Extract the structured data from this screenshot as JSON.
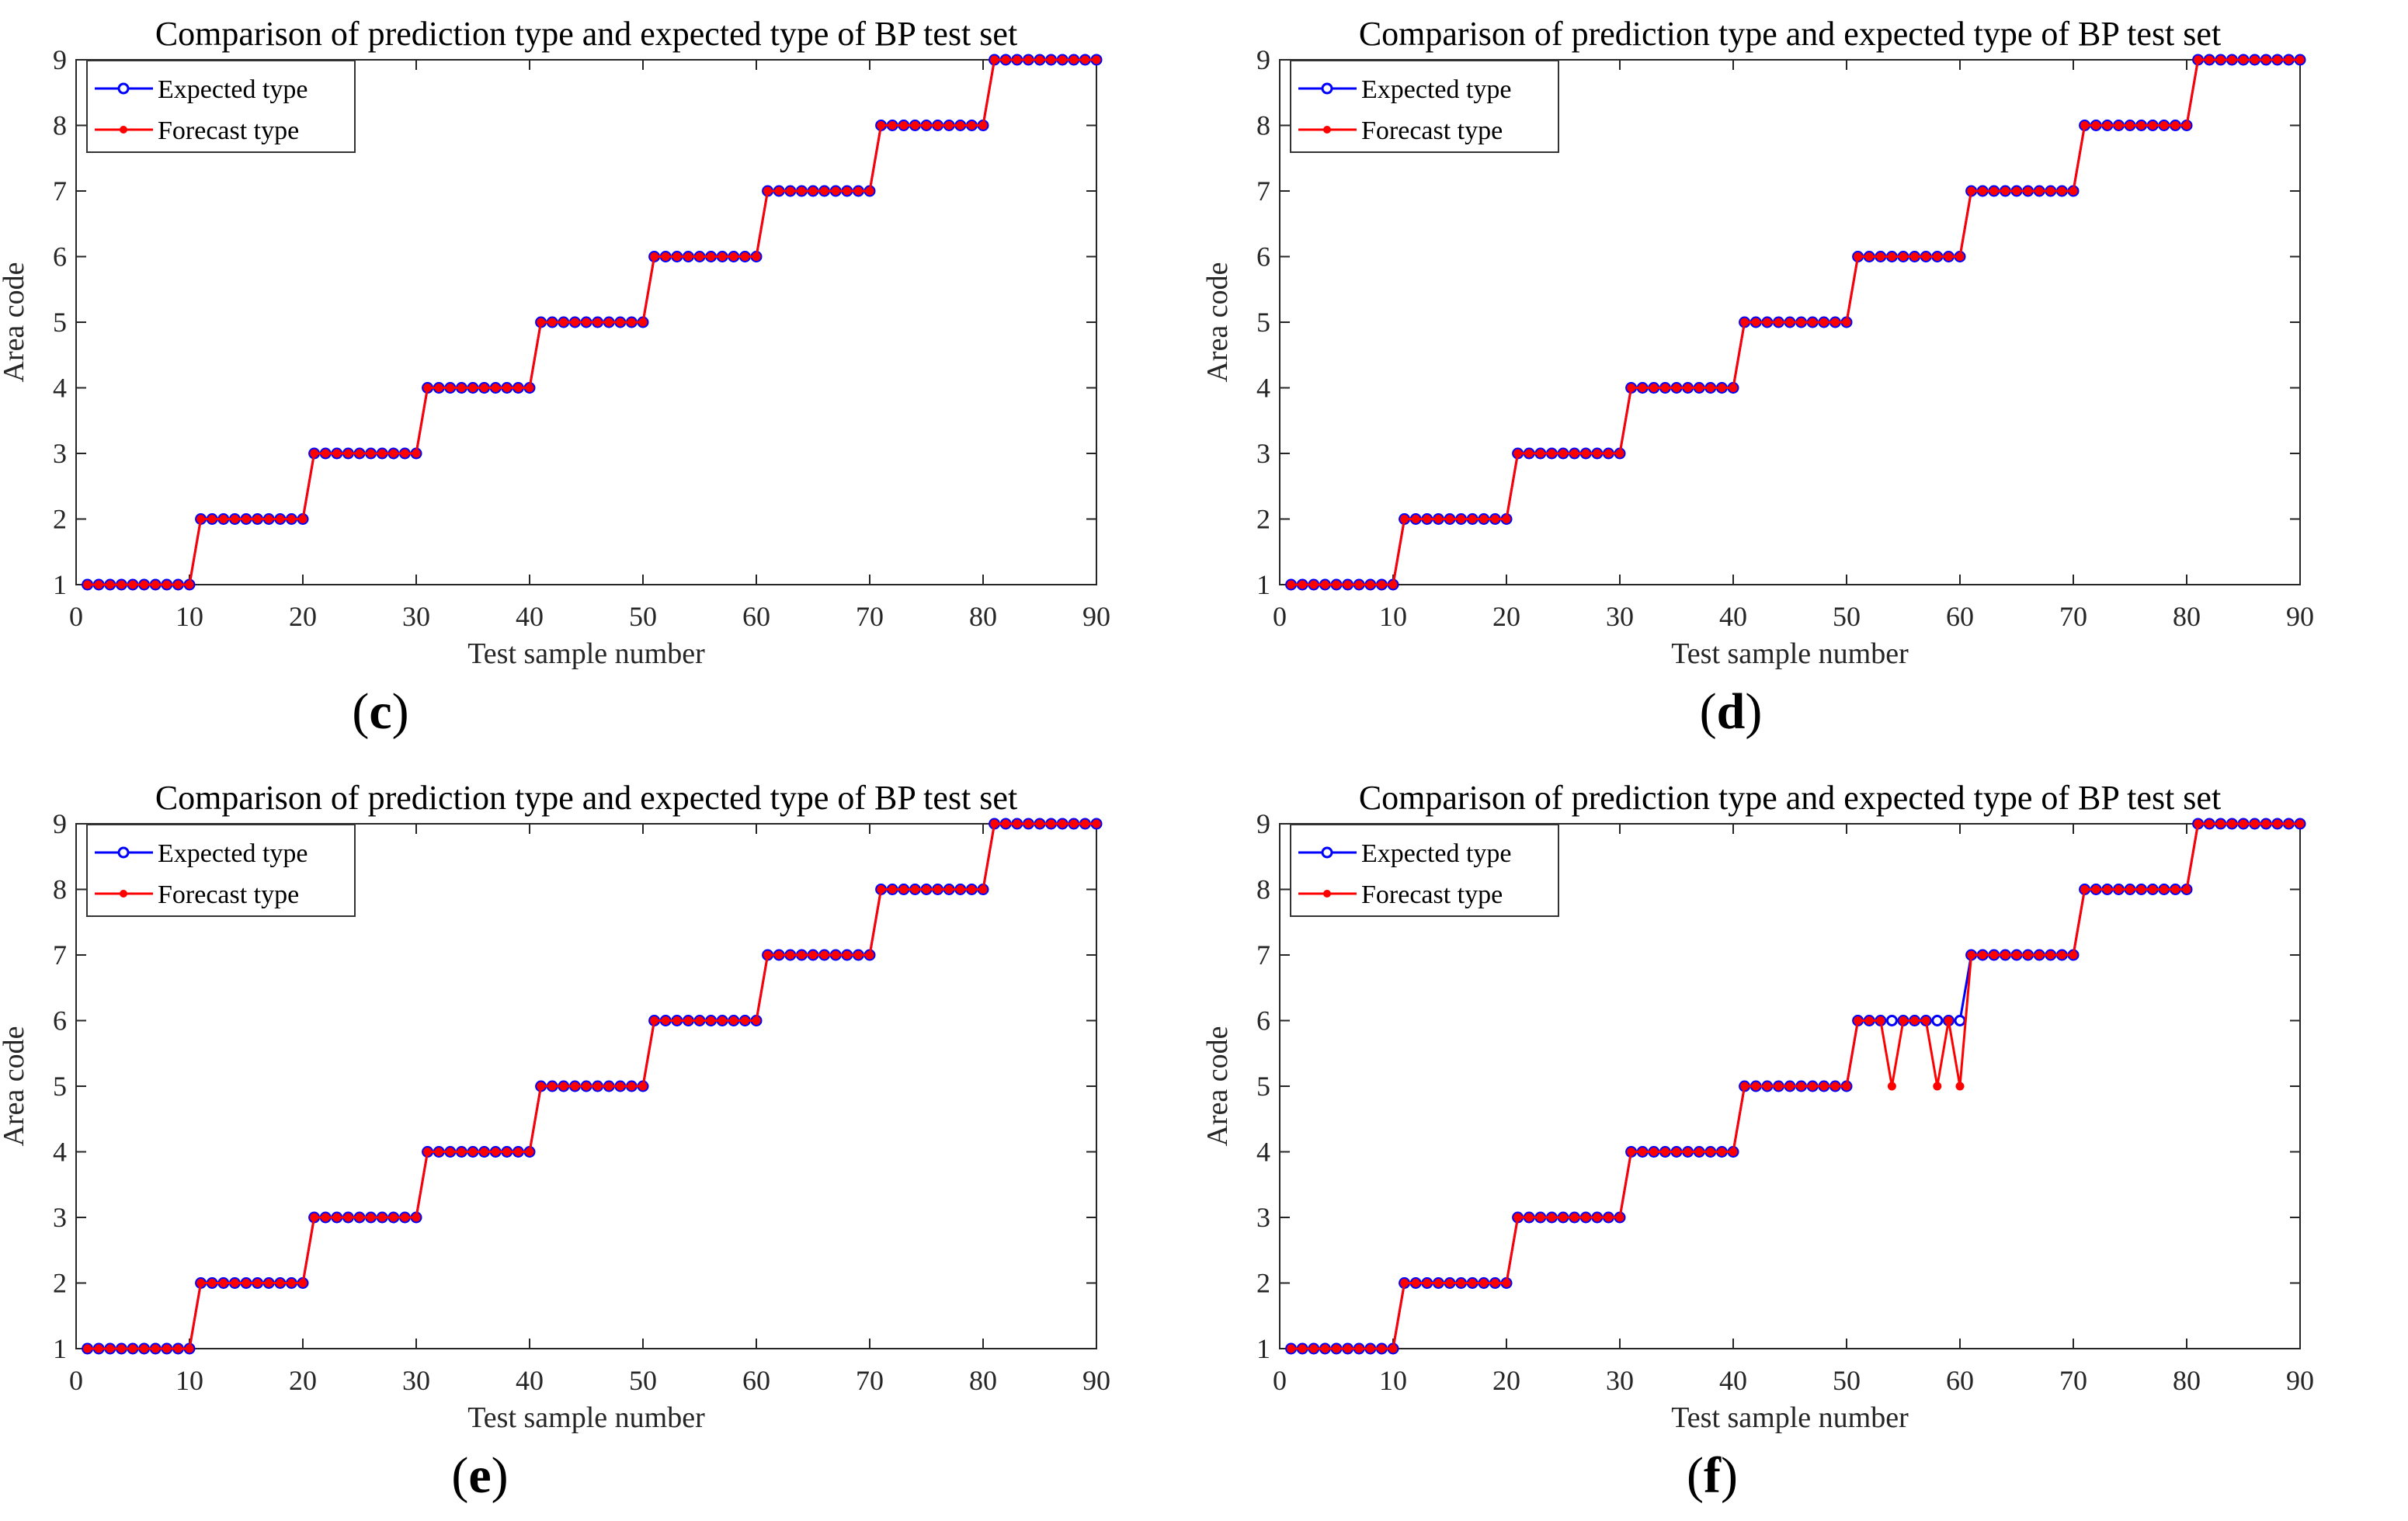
{
  "figure": {
    "panels": [
      {
        "id": "c",
        "label_open": "(",
        "letter": "c",
        "label_close": ")"
      },
      {
        "id": "d",
        "label_open": "(",
        "letter": "d",
        "label_close": ")"
      },
      {
        "id": "e",
        "label_open": "(",
        "letter": "e",
        "label_close": ")"
      },
      {
        "id": "f",
        "label_open": "(",
        "letter": "f",
        "label_close": ")"
      }
    ]
  },
  "chart_data": [
    {
      "id": "c",
      "type": "line",
      "title": "Comparison of prediction type and expected type of BP test set",
      "xlabel": "Test sample number",
      "ylabel": "Area code",
      "xlim": [
        0,
        90
      ],
      "ylim": [
        1,
        9
      ],
      "xticks": [
        0,
        10,
        20,
        30,
        40,
        50,
        60,
        70,
        80,
        90
      ],
      "yticks": [
        1,
        2,
        3,
        4,
        5,
        6,
        7,
        8,
        9
      ],
      "grid": false,
      "legend_position": "top-left",
      "x": [
        1,
        2,
        3,
        4,
        5,
        6,
        7,
        8,
        9,
        10,
        11,
        12,
        13,
        14,
        15,
        16,
        17,
        18,
        19,
        20,
        21,
        22,
        23,
        24,
        25,
        26,
        27,
        28,
        29,
        30,
        31,
        32,
        33,
        34,
        35,
        36,
        37,
        38,
        39,
        40,
        41,
        42,
        43,
        44,
        45,
        46,
        47,
        48,
        49,
        50,
        51,
        52,
        53,
        54,
        55,
        56,
        57,
        58,
        59,
        60,
        61,
        62,
        63,
        64,
        65,
        66,
        67,
        68,
        69,
        70,
        71,
        72,
        73,
        74,
        75,
        76,
        77,
        78,
        79,
        80,
        81,
        82,
        83,
        84,
        85,
        86,
        87,
        88,
        89,
        90
      ],
      "series": [
        {
          "name": "Expected type",
          "color": "#0000FF",
          "marker": "open-circle",
          "values": [
            1,
            1,
            1,
            1,
            1,
            1,
            1,
            1,
            1,
            1,
            2,
            2,
            2,
            2,
            2,
            2,
            2,
            2,
            2,
            2,
            3,
            3,
            3,
            3,
            3,
            3,
            3,
            3,
            3,
            3,
            4,
            4,
            4,
            4,
            4,
            4,
            4,
            4,
            4,
            4,
            5,
            5,
            5,
            5,
            5,
            5,
            5,
            5,
            5,
            5,
            6,
            6,
            6,
            6,
            6,
            6,
            6,
            6,
            6,
            6,
            7,
            7,
            7,
            7,
            7,
            7,
            7,
            7,
            7,
            7,
            8,
            8,
            8,
            8,
            8,
            8,
            8,
            8,
            8,
            8,
            9,
            9,
            9,
            9,
            9,
            9,
            9,
            9,
            9,
            9
          ]
        },
        {
          "name": "Forecast type",
          "color": "#FF0000",
          "marker": "filled-circle",
          "values": [
            1,
            1,
            1,
            1,
            1,
            1,
            1,
            1,
            1,
            1,
            2,
            2,
            2,
            2,
            2,
            2,
            2,
            2,
            2,
            2,
            3,
            3,
            3,
            3,
            3,
            3,
            3,
            3,
            3,
            3,
            4,
            4,
            4,
            4,
            4,
            4,
            4,
            4,
            4,
            4,
            5,
            5,
            5,
            5,
            5,
            5,
            5,
            5,
            5,
            5,
            6,
            6,
            6,
            6,
            6,
            6,
            6,
            6,
            6,
            6,
            7,
            7,
            7,
            7,
            7,
            7,
            7,
            7,
            7,
            7,
            8,
            8,
            8,
            8,
            8,
            8,
            8,
            8,
            8,
            8,
            9,
            9,
            9,
            9,
            9,
            9,
            9,
            9,
            9,
            9
          ]
        }
      ]
    },
    {
      "id": "d",
      "type": "line",
      "title": "Comparison of prediction type and expected type of BP test set",
      "xlabel": "Test sample number",
      "ylabel": "Area code",
      "xlim": [
        0,
        90
      ],
      "ylim": [
        1,
        9
      ],
      "xticks": [
        0,
        10,
        20,
        30,
        40,
        50,
        60,
        70,
        80,
        90
      ],
      "yticks": [
        1,
        2,
        3,
        4,
        5,
        6,
        7,
        8,
        9
      ],
      "grid": false,
      "legend_position": "top-left",
      "x": [
        1,
        2,
        3,
        4,
        5,
        6,
        7,
        8,
        9,
        10,
        11,
        12,
        13,
        14,
        15,
        16,
        17,
        18,
        19,
        20,
        21,
        22,
        23,
        24,
        25,
        26,
        27,
        28,
        29,
        30,
        31,
        32,
        33,
        34,
        35,
        36,
        37,
        38,
        39,
        40,
        41,
        42,
        43,
        44,
        45,
        46,
        47,
        48,
        49,
        50,
        51,
        52,
        53,
        54,
        55,
        56,
        57,
        58,
        59,
        60,
        61,
        62,
        63,
        64,
        65,
        66,
        67,
        68,
        69,
        70,
        71,
        72,
        73,
        74,
        75,
        76,
        77,
        78,
        79,
        80,
        81,
        82,
        83,
        84,
        85,
        86,
        87,
        88,
        89,
        90
      ],
      "series": [
        {
          "name": "Expected type",
          "color": "#0000FF",
          "marker": "open-circle",
          "values": [
            1,
            1,
            1,
            1,
            1,
            1,
            1,
            1,
            1,
            1,
            2,
            2,
            2,
            2,
            2,
            2,
            2,
            2,
            2,
            2,
            3,
            3,
            3,
            3,
            3,
            3,
            3,
            3,
            3,
            3,
            4,
            4,
            4,
            4,
            4,
            4,
            4,
            4,
            4,
            4,
            5,
            5,
            5,
            5,
            5,
            5,
            5,
            5,
            5,
            5,
            6,
            6,
            6,
            6,
            6,
            6,
            6,
            6,
            6,
            6,
            7,
            7,
            7,
            7,
            7,
            7,
            7,
            7,
            7,
            7,
            8,
            8,
            8,
            8,
            8,
            8,
            8,
            8,
            8,
            8,
            9,
            9,
            9,
            9,
            9,
            9,
            9,
            9,
            9,
            9
          ]
        },
        {
          "name": "Forecast type",
          "color": "#FF0000",
          "marker": "filled-circle",
          "values": [
            1,
            1,
            1,
            1,
            1,
            1,
            1,
            1,
            1,
            1,
            2,
            2,
            2,
            2,
            2,
            2,
            2,
            2,
            2,
            2,
            3,
            3,
            3,
            3,
            3,
            3,
            3,
            3,
            3,
            3,
            4,
            4,
            4,
            4,
            4,
            4,
            4,
            4,
            4,
            4,
            5,
            5,
            5,
            5,
            5,
            5,
            5,
            5,
            5,
            5,
            6,
            6,
            6,
            6,
            6,
            6,
            6,
            6,
            6,
            6,
            7,
            7,
            7,
            7,
            7,
            7,
            7,
            7,
            7,
            7,
            8,
            8,
            8,
            8,
            8,
            8,
            8,
            8,
            8,
            8,
            9,
            9,
            9,
            9,
            9,
            9,
            9,
            9,
            9,
            9
          ]
        }
      ]
    },
    {
      "id": "e",
      "type": "line",
      "title": "Comparison of prediction type and expected type of BP test set",
      "xlabel": "Test sample number",
      "ylabel": "Area code",
      "xlim": [
        0,
        90
      ],
      "ylim": [
        1,
        9
      ],
      "xticks": [
        0,
        10,
        20,
        30,
        40,
        50,
        60,
        70,
        80,
        90
      ],
      "yticks": [
        1,
        2,
        3,
        4,
        5,
        6,
        7,
        8,
        9
      ],
      "grid": false,
      "legend_position": "top-left",
      "x": [
        1,
        2,
        3,
        4,
        5,
        6,
        7,
        8,
        9,
        10,
        11,
        12,
        13,
        14,
        15,
        16,
        17,
        18,
        19,
        20,
        21,
        22,
        23,
        24,
        25,
        26,
        27,
        28,
        29,
        30,
        31,
        32,
        33,
        34,
        35,
        36,
        37,
        38,
        39,
        40,
        41,
        42,
        43,
        44,
        45,
        46,
        47,
        48,
        49,
        50,
        51,
        52,
        53,
        54,
        55,
        56,
        57,
        58,
        59,
        60,
        61,
        62,
        63,
        64,
        65,
        66,
        67,
        68,
        69,
        70,
        71,
        72,
        73,
        74,
        75,
        76,
        77,
        78,
        79,
        80,
        81,
        82,
        83,
        84,
        85,
        86,
        87,
        88,
        89,
        90
      ],
      "series": [
        {
          "name": "Expected type",
          "color": "#0000FF",
          "marker": "open-circle",
          "values": [
            1,
            1,
            1,
            1,
            1,
            1,
            1,
            1,
            1,
            1,
            2,
            2,
            2,
            2,
            2,
            2,
            2,
            2,
            2,
            2,
            3,
            3,
            3,
            3,
            3,
            3,
            3,
            3,
            3,
            3,
            4,
            4,
            4,
            4,
            4,
            4,
            4,
            4,
            4,
            4,
            5,
            5,
            5,
            5,
            5,
            5,
            5,
            5,
            5,
            5,
            6,
            6,
            6,
            6,
            6,
            6,
            6,
            6,
            6,
            6,
            7,
            7,
            7,
            7,
            7,
            7,
            7,
            7,
            7,
            7,
            8,
            8,
            8,
            8,
            8,
            8,
            8,
            8,
            8,
            8,
            9,
            9,
            9,
            9,
            9,
            9,
            9,
            9,
            9,
            9
          ]
        },
        {
          "name": "Forecast type",
          "color": "#FF0000",
          "marker": "filled-circle",
          "values": [
            1,
            1,
            1,
            1,
            1,
            1,
            1,
            1,
            1,
            1,
            2,
            2,
            2,
            2,
            2,
            2,
            2,
            2,
            2,
            2,
            3,
            3,
            3,
            3,
            3,
            3,
            3,
            3,
            3,
            3,
            4,
            4,
            4,
            4,
            4,
            4,
            4,
            4,
            4,
            4,
            5,
            5,
            5,
            5,
            5,
            5,
            5,
            5,
            5,
            5,
            6,
            6,
            6,
            6,
            6,
            6,
            6,
            6,
            6,
            6,
            7,
            7,
            7,
            7,
            7,
            7,
            7,
            7,
            7,
            7,
            8,
            8,
            8,
            8,
            8,
            8,
            8,
            8,
            8,
            8,
            9,
            9,
            9,
            9,
            9,
            9,
            9,
            9,
            9,
            9
          ]
        }
      ]
    },
    {
      "id": "f",
      "type": "line",
      "title": "Comparison of prediction type and expected type of BP test set",
      "xlabel": "Test sample number",
      "ylabel": "Area code",
      "xlim": [
        0,
        90
      ],
      "ylim": [
        1,
        9
      ],
      "xticks": [
        0,
        10,
        20,
        30,
        40,
        50,
        60,
        70,
        80,
        90
      ],
      "yticks": [
        1,
        2,
        3,
        4,
        5,
        6,
        7,
        8,
        9
      ],
      "grid": false,
      "legend_position": "top-left",
      "x": [
        1,
        2,
        3,
        4,
        5,
        6,
        7,
        8,
        9,
        10,
        11,
        12,
        13,
        14,
        15,
        16,
        17,
        18,
        19,
        20,
        21,
        22,
        23,
        24,
        25,
        26,
        27,
        28,
        29,
        30,
        31,
        32,
        33,
        34,
        35,
        36,
        37,
        38,
        39,
        40,
        41,
        42,
        43,
        44,
        45,
        46,
        47,
        48,
        49,
        50,
        51,
        52,
        53,
        54,
        55,
        56,
        57,
        58,
        59,
        60,
        61,
        62,
        63,
        64,
        65,
        66,
        67,
        68,
        69,
        70,
        71,
        72,
        73,
        74,
        75,
        76,
        77,
        78,
        79,
        80,
        81,
        82,
        83,
        84,
        85,
        86,
        87,
        88,
        89,
        90
      ],
      "series": [
        {
          "name": "Expected type",
          "color": "#0000FF",
          "marker": "open-circle",
          "values": [
            1,
            1,
            1,
            1,
            1,
            1,
            1,
            1,
            1,
            1,
            2,
            2,
            2,
            2,
            2,
            2,
            2,
            2,
            2,
            2,
            3,
            3,
            3,
            3,
            3,
            3,
            3,
            3,
            3,
            3,
            4,
            4,
            4,
            4,
            4,
            4,
            4,
            4,
            4,
            4,
            5,
            5,
            5,
            5,
            5,
            5,
            5,
            5,
            5,
            5,
            6,
            6,
            6,
            6,
            6,
            6,
            6,
            6,
            6,
            6,
            7,
            7,
            7,
            7,
            7,
            7,
            7,
            7,
            7,
            7,
            8,
            8,
            8,
            8,
            8,
            8,
            8,
            8,
            8,
            8,
            9,
            9,
            9,
            9,
            9,
            9,
            9,
            9,
            9,
            9
          ]
        },
        {
          "name": "Forecast type",
          "color": "#FF0000",
          "marker": "filled-circle",
          "values": [
            1,
            1,
            1,
            1,
            1,
            1,
            1,
            1,
            1,
            1,
            2,
            2,
            2,
            2,
            2,
            2,
            2,
            2,
            2,
            2,
            3,
            3,
            3,
            3,
            3,
            3,
            3,
            3,
            3,
            3,
            4,
            4,
            4,
            4,
            4,
            4,
            4,
            4,
            4,
            4,
            5,
            5,
            5,
            5,
            5,
            5,
            5,
            5,
            5,
            5,
            6,
            6,
            6,
            5,
            6,
            6,
            6,
            5,
            6,
            5,
            7,
            7,
            7,
            7,
            7,
            7,
            7,
            7,
            7,
            7,
            8,
            8,
            8,
            8,
            8,
            8,
            8,
            8,
            8,
            8,
            9,
            9,
            9,
            9,
            9,
            9,
            9,
            9,
            9,
            9
          ]
        }
      ]
    }
  ]
}
